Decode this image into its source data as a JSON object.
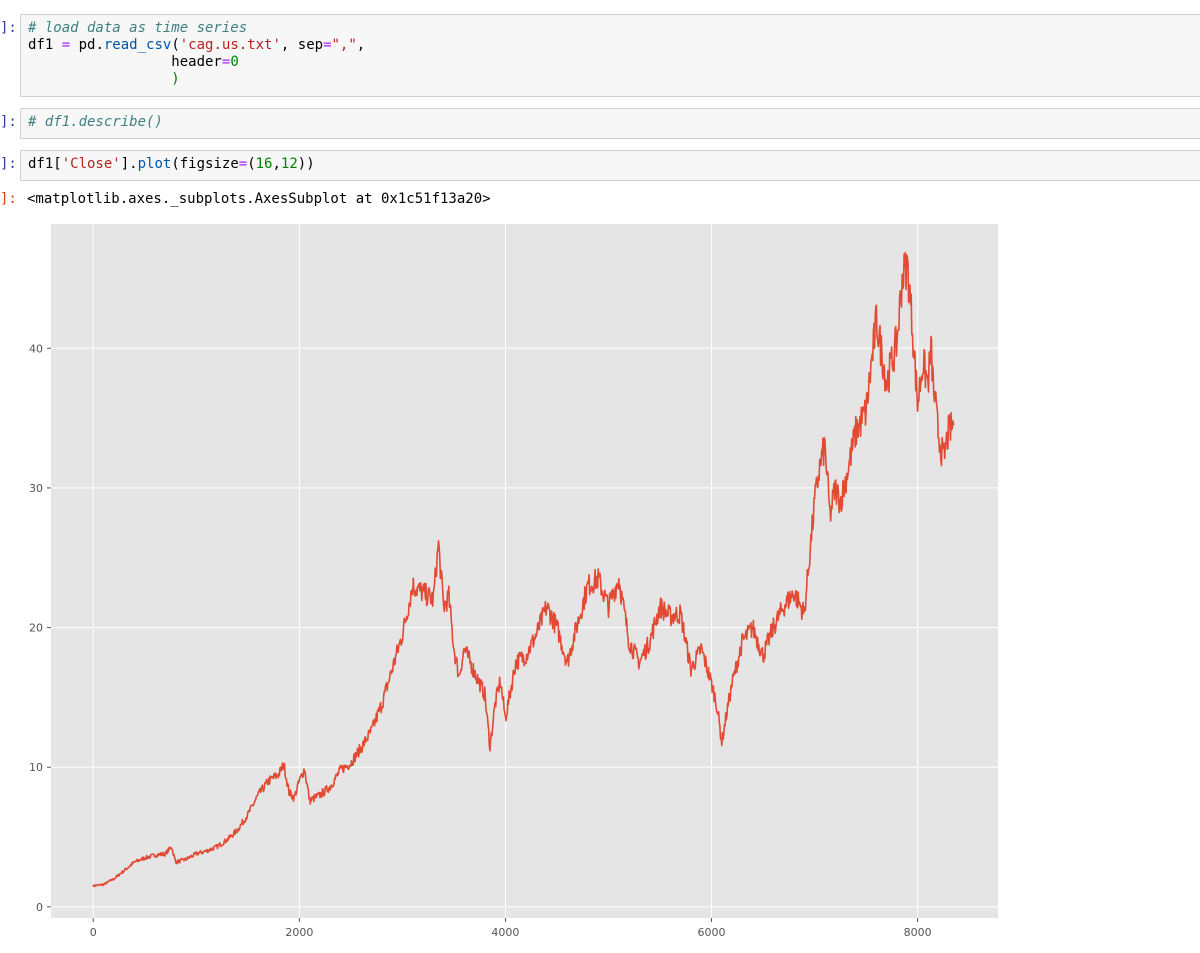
{
  "cells": [
    {
      "prompt": "]:",
      "lines": [
        [
          {
            "t": "# load data as time series",
            "c": "c-comment"
          }
        ],
        [
          {
            "t": "df1 ",
            "c": "c-name"
          },
          {
            "t": "=",
            "c": "c-op"
          },
          {
            "t": " pd.",
            "c": "c-name"
          },
          {
            "t": "read_csv",
            "c": "c-attr"
          },
          {
            "t": "(",
            "c": "c-name"
          },
          {
            "t": "'cag.us.txt'",
            "c": "c-str"
          },
          {
            "t": ", sep",
            "c": "c-name"
          },
          {
            "t": "=",
            "c": "c-op"
          },
          {
            "t": "\",\"",
            "c": "c-str"
          },
          {
            "t": ",",
            "c": "c-name"
          }
        ],
        [
          {
            "t": "                 header",
            "c": "c-name"
          },
          {
            "t": "=",
            "c": "c-op"
          },
          {
            "t": "0",
            "c": "c-num"
          }
        ],
        [
          {
            "t": "                 )",
            "c": "c-num"
          }
        ]
      ]
    },
    {
      "prompt": "]:",
      "lines": [
        [
          {
            "t": "# df1.describe()",
            "c": "c-comment"
          }
        ]
      ]
    },
    {
      "prompt": "]:",
      "lines": [
        [
          {
            "t": "df1[",
            "c": "c-name"
          },
          {
            "t": "'Close'",
            "c": "c-str"
          },
          {
            "t": "].",
            "c": "c-name"
          },
          {
            "t": "plot",
            "c": "c-attr"
          },
          {
            "t": "(figsize",
            "c": "c-name"
          },
          {
            "t": "=",
            "c": "c-op"
          },
          {
            "t": "(",
            "c": "c-name"
          },
          {
            "t": "16",
            "c": "c-num"
          },
          {
            "t": ",",
            "c": "c-name"
          },
          {
            "t": "12",
            "c": "c-num"
          },
          {
            "t": "))",
            "c": "c-name"
          }
        ]
      ]
    }
  ],
  "output": {
    "prompt": "]:",
    "text": "<matplotlib.axes._subplots.AxesSubplot at 0x1c51f13a20>"
  },
  "chart_data": {
    "type": "line",
    "title": "",
    "xlabel": "",
    "ylabel": "",
    "xlim": [
      -410,
      8780
    ],
    "ylim": [
      -0.8,
      48.9
    ],
    "xticks": [
      0,
      2000,
      4000,
      6000,
      8000
    ],
    "yticks": [
      0,
      10,
      20,
      30,
      40
    ],
    "grid": true,
    "line_color": "#e24a33",
    "background": "#e5e5e5",
    "series": [
      {
        "x": [
          0,
          100,
          200,
          300,
          400,
          500,
          600,
          700,
          760,
          800,
          900,
          1000,
          1100,
          1200,
          1300,
          1400,
          1500,
          1600,
          1700,
          1800,
          1850,
          1900,
          1950,
          2000,
          2050,
          2100,
          2200,
          2300,
          2400,
          2500,
          2600,
          2700,
          2800,
          2900,
          3000,
          3100,
          3200,
          3300,
          3350,
          3400,
          3450,
          3500,
          3550,
          3600,
          3700,
          3800,
          3850,
          3900,
          3950,
          4000,
          4100,
          4200,
          4300,
          4400,
          4500,
          4600,
          4700,
          4800,
          4900,
          5000,
          5100,
          5200,
          5300,
          5400,
          5500,
          5600,
          5700,
          5800,
          5900,
          6000,
          6050,
          6100,
          6150,
          6200,
          6300,
          6400,
          6500,
          6600,
          6700,
          6800,
          6900,
          7000,
          7050,
          7100,
          7150,
          7200,
          7250,
          7300,
          7400,
          7500,
          7600,
          7700,
          7800,
          7850,
          7900,
          7950,
          8000,
          8050,
          8100,
          8130,
          8150,
          8200,
          8250,
          8300,
          8350
        ],
        "y": [
          1.5,
          1.6,
          2.0,
          2.6,
          3.2,
          3.5,
          3.7,
          3.8,
          4.3,
          3.2,
          3.4,
          3.8,
          4.0,
          4.3,
          4.8,
          5.5,
          6.6,
          8.0,
          9.0,
          9.5,
          10.2,
          8.2,
          7.8,
          9.0,
          9.9,
          7.6,
          8.0,
          8.6,
          9.8,
          10.3,
          11.4,
          12.6,
          14.5,
          17.0,
          19.5,
          23.0,
          22.5,
          22.0,
          26.0,
          21.5,
          22.2,
          18.5,
          16.5,
          18.5,
          16.8,
          15.2,
          11.5,
          14.5,
          16.2,
          13.5,
          17.5,
          18.0,
          19.5,
          21.5,
          20.0,
          17.5,
          20.3,
          23.0,
          23.5,
          21.5,
          23.5,
          19.0,
          17.5,
          19.0,
          21.5,
          20.8,
          21.0,
          17.0,
          18.5,
          16.0,
          14.5,
          11.8,
          14.0,
          16.0,
          19.0,
          20.0,
          18.0,
          20.0,
          21.5,
          22.5,
          21.0,
          29.0,
          31.5,
          33.0,
          28.0,
          30.0,
          29.0,
          30.5,
          34.0,
          35.5,
          42.0,
          37.5,
          40.5,
          45.0,
          46.0,
          41.5,
          36.0,
          39.0,
          37.5,
          40.0,
          37.5,
          34.0,
          32.0,
          34.0,
          34.5
        ]
      }
    ]
  }
}
